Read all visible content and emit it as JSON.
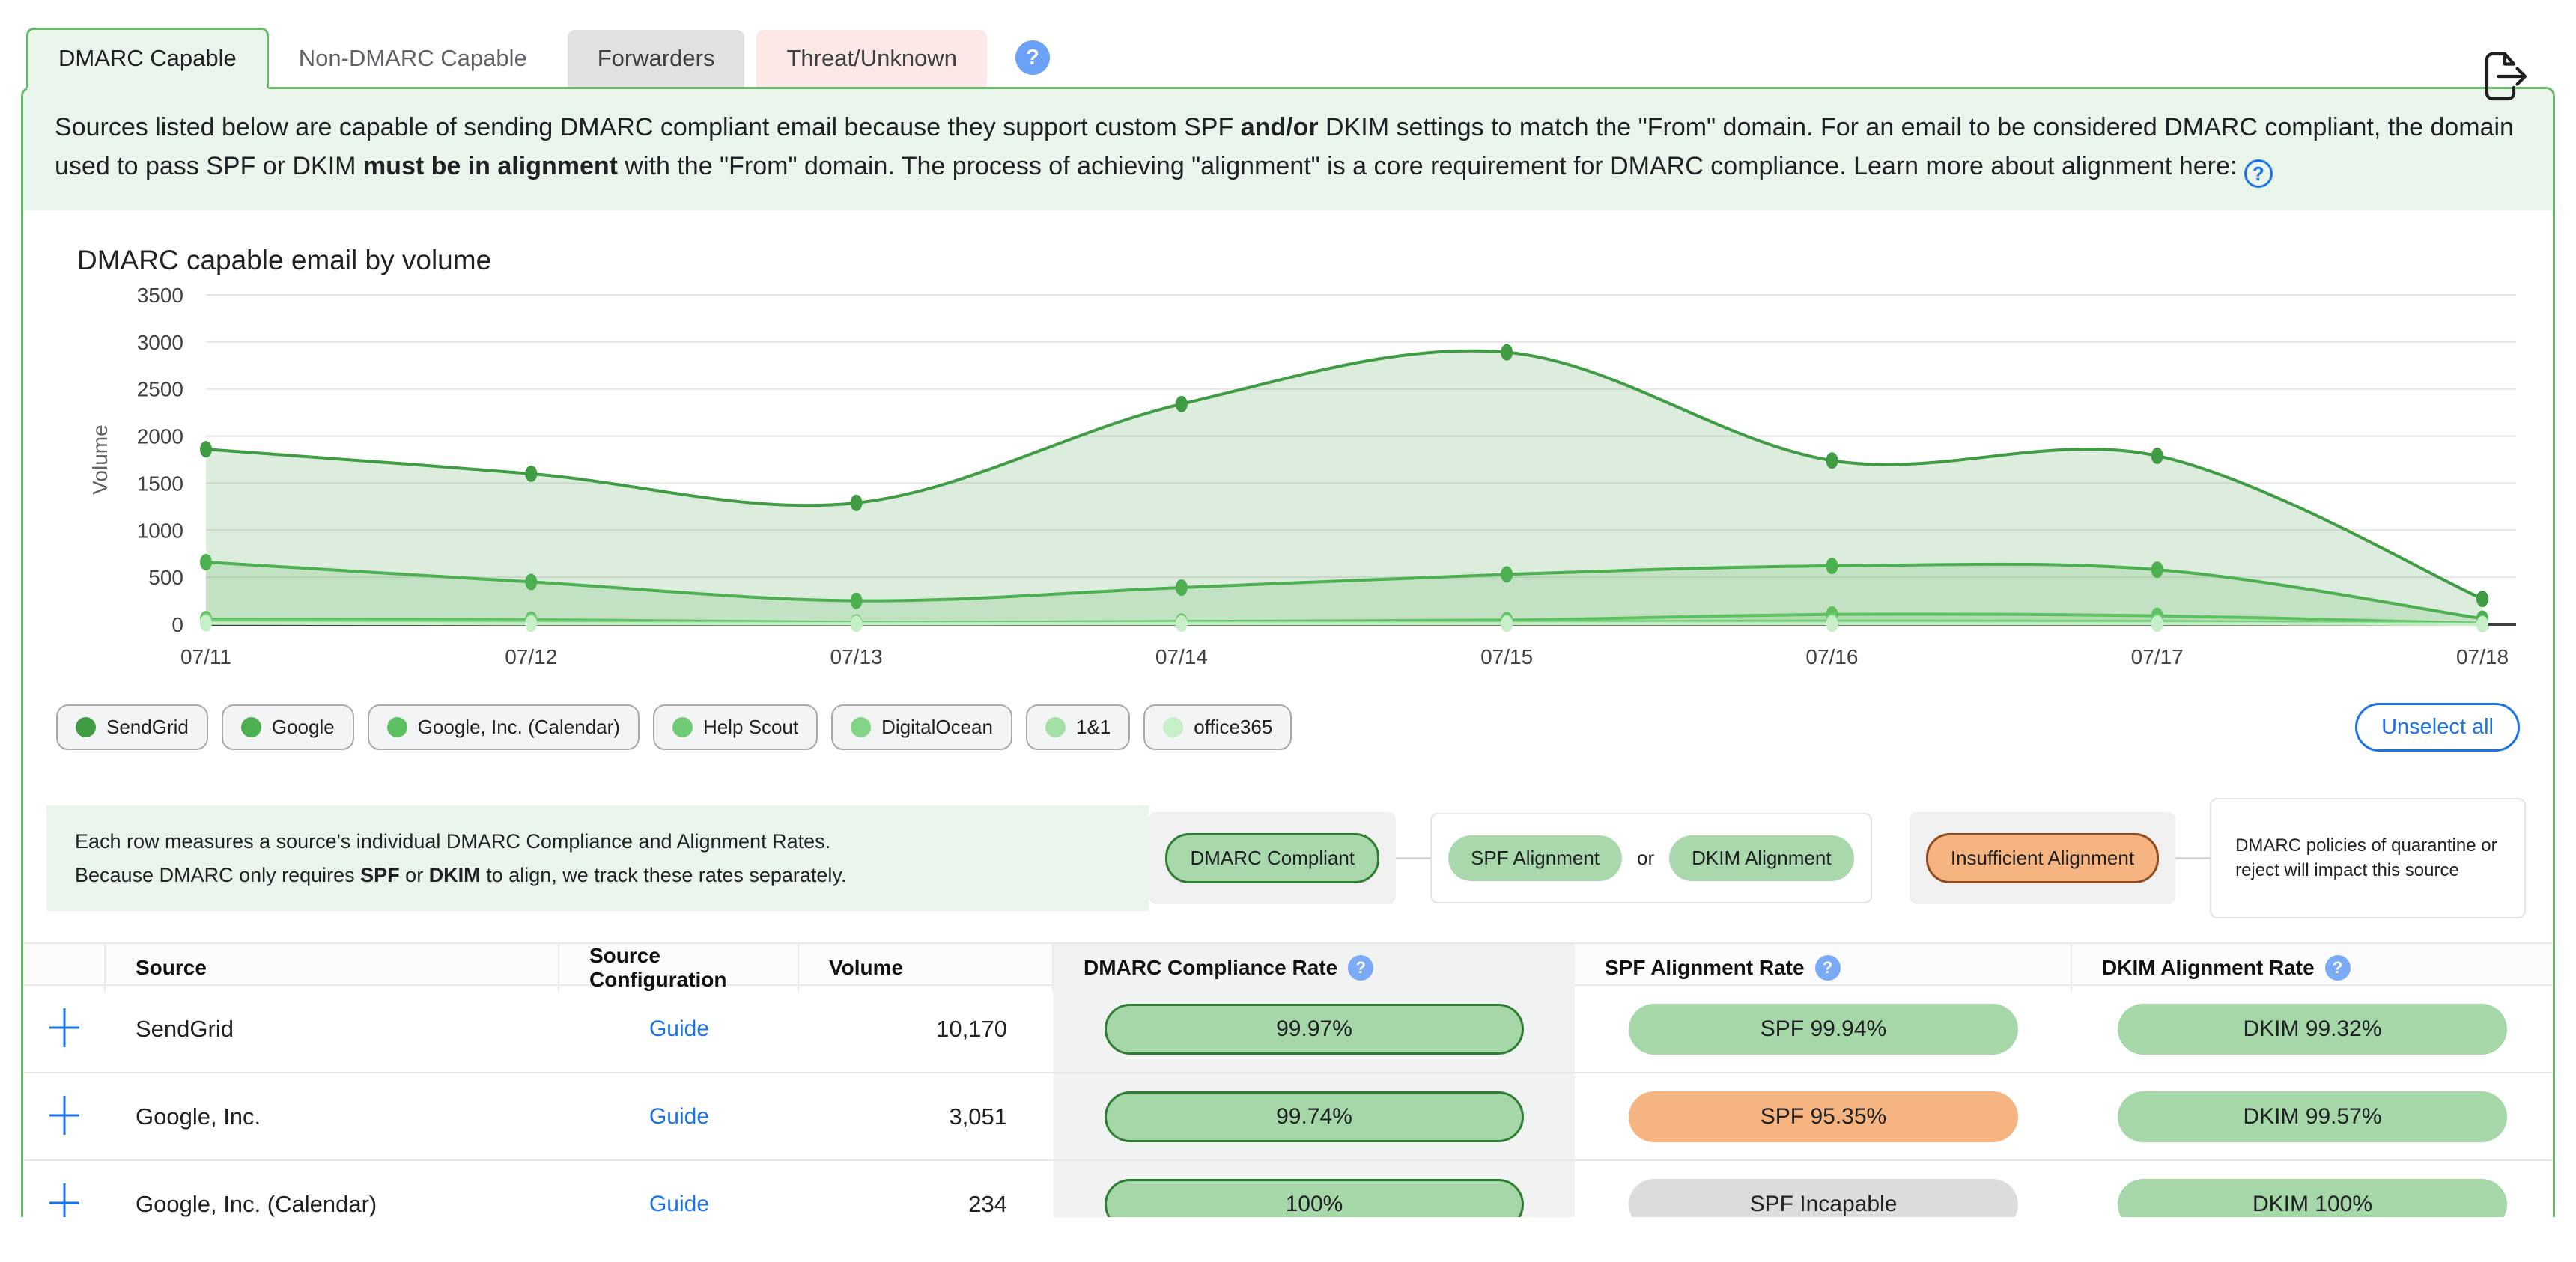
{
  "tabs": {
    "items": [
      {
        "label": "DMARC Capable"
      },
      {
        "label": "Non-DMARC Capable"
      },
      {
        "label": "Forwarders"
      },
      {
        "label": "Threat/Unknown"
      }
    ],
    "help": "?"
  },
  "description": {
    "p1": "Sources listed below are capable of sending DMARC compliant email because they support custom SPF ",
    "b1": "and/or",
    "p2": " DKIM settings to match the \"From\" domain. For an email to be considered DMARC compliant, the domain used to pass SPF or DKIM ",
    "b2": "must be in alignment",
    "p3": " with the \"From\" domain. The process of achieving \"alignment\" is a core requirement for DMARC compliance. Learn more about alignment here: ",
    "help": "?"
  },
  "chart_data": {
    "type": "area",
    "title": "DMARC capable email by volume",
    "xlabel": "",
    "ylabel": "Volume",
    "x": [
      "07/11",
      "07/12",
      "07/13",
      "07/14",
      "07/15",
      "07/16",
      "07/17",
      "07/18"
    ],
    "ylim": [
      0,
      3500
    ],
    "ytick_step": 500,
    "grid": true,
    "legend_position": "bottom",
    "series": [
      {
        "name": "SendGrid",
        "color": "#3f9c43",
        "values": [
          1860,
          1600,
          1290,
          2340,
          2890,
          1740,
          1790,
          270
        ]
      },
      {
        "name": "Google",
        "color": "#4caf50",
        "values": [
          660,
          450,
          250,
          390,
          530,
          620,
          580,
          60
        ]
      },
      {
        "name": "Google, Inc. (Calendar)",
        "color": "#5dc161",
        "values": [
          55,
          50,
          20,
          30,
          45,
          105,
          90,
          10
        ]
      },
      {
        "name": "Help Scout",
        "color": "#70cb74",
        "values": [
          40,
          30,
          15,
          20,
          25,
          35,
          30,
          5
        ]
      },
      {
        "name": "DigitalOcean",
        "color": "#84d487",
        "values": [
          25,
          20,
          10,
          15,
          15,
          20,
          15,
          5
        ]
      },
      {
        "name": "1&1",
        "color": "#a3e0a5",
        "values": [
          15,
          10,
          5,
          10,
          10,
          10,
          8,
          0
        ]
      },
      {
        "name": "office365",
        "color": "#c6eec7",
        "values": [
          10,
          5,
          5,
          5,
          5,
          5,
          5,
          0
        ]
      }
    ]
  },
  "chart_controls": {
    "unselect_all": "Unselect all"
  },
  "note": {
    "line1": "Each row measures a source's individual DMARC Compliance and Alignment Rates.",
    "l2a": "Because DMARC only requires ",
    "l2b": "SPF",
    "l2c": " or ",
    "l2d": "DKIM",
    "l2e": " to align, we track these rates separately."
  },
  "rate_legend": {
    "dmarc_compliant": "DMARC Compliant",
    "spf_alignment": "SPF Alignment",
    "or": "or",
    "dkim_alignment": "DKIM Alignment",
    "insufficient": "Insufficient Alignment",
    "impact_note": "DMARC policies of quarantine or reject will impact this source",
    "help": "?"
  },
  "table": {
    "headers": {
      "source": "Source",
      "config": "Source Configuration",
      "volume": "Volume",
      "dmarc": "DMARC Compliance Rate",
      "spf": "SPF Alignment Rate",
      "dkim": "DKIM Alignment Rate",
      "help": "?"
    },
    "rows": [
      {
        "source": "SendGrid",
        "config": "Guide",
        "volume": "10,170",
        "dmarc": {
          "label": "99.97%",
          "variant": "green-bordered"
        },
        "spf": {
          "label": "SPF 99.94%",
          "variant": "green"
        },
        "dkim": {
          "label": "DKIM 99.32%",
          "variant": "green"
        }
      },
      {
        "source": "Google, Inc.",
        "config": "Guide",
        "volume": "3,051",
        "dmarc": {
          "label": "99.74%",
          "variant": "green-bordered"
        },
        "spf": {
          "label": "SPF 95.35%",
          "variant": "orange"
        },
        "dkim": {
          "label": "DKIM 99.57%",
          "variant": "green"
        }
      },
      {
        "source": "Google, Inc. (Calendar)",
        "config": "Guide",
        "volume": "234",
        "dmarc": {
          "label": "100%",
          "variant": "green-bordered"
        },
        "spf": {
          "label": "SPF Incapable",
          "variant": "gray"
        },
        "dkim": {
          "label": "DKIM 100%",
          "variant": "green"
        }
      }
    ]
  }
}
